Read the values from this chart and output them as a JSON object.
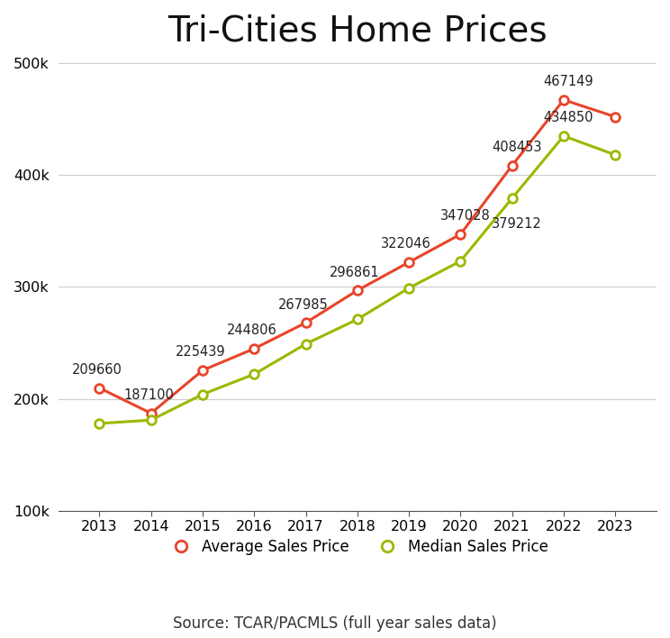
{
  "title": "Tri-Cities Home Prices",
  "source_text": "Source: TCAR/PACMLS (full year sales data)",
  "years": [
    2013,
    2014,
    2015,
    2016,
    2017,
    2018,
    2019,
    2020,
    2021,
    2022,
    2023
  ],
  "average_prices": [
    209660,
    187100,
    225439,
    244806,
    267985,
    296861,
    322046,
    347028,
    408453,
    467149,
    452000
  ],
  "median_prices": [
    178000,
    181000,
    204000,
    222000,
    249000,
    271000,
    299000,
    323000,
    379212,
    434850,
    418000
  ],
  "avg_color": "#e8442a",
  "med_color": "#9db800",
  "avg_label": "Average Sales Price",
  "med_label": "Median Sales Price",
  "ylim": [
    100000,
    500000
  ],
  "yticks": [
    100000,
    200000,
    300000,
    400000,
    500000
  ],
  "background_color": "#ffffff",
  "title_fontsize": 28,
  "annotation_fontsize": 10.5,
  "legend_fontsize": 12,
  "source_fontsize": 12,
  "avg_annotations": {
    "2013": {
      "label": "209660",
      "ox": -2,
      "oy": 9
    },
    "2014": {
      "label": "187100",
      "ox": -2,
      "oy": 9
    },
    "2015": {
      "label": "225439",
      "ox": -2,
      "oy": 9
    },
    "2016": {
      "label": "244806",
      "ox": -2,
      "oy": 9
    },
    "2017": {
      "label": "267985",
      "ox": -2,
      "oy": 9
    },
    "2018": {
      "label": "296861",
      "ox": -2,
      "oy": 9
    },
    "2019": {
      "label": "322046",
      "ox": -2,
      "oy": 9
    },
    "2020": {
      "label": "347028",
      "ox": 4,
      "oy": 9
    },
    "2021": {
      "label": "408453",
      "ox": 4,
      "oy": 9
    },
    "2022": {
      "label": "467149",
      "ox": 4,
      "oy": 9
    }
  },
  "med_annotations": {
    "2021": {
      "label": "379212",
      "ox": 4,
      "oy": -15
    },
    "2022": {
      "label": "434850",
      "ox": 4,
      "oy": 9
    }
  }
}
